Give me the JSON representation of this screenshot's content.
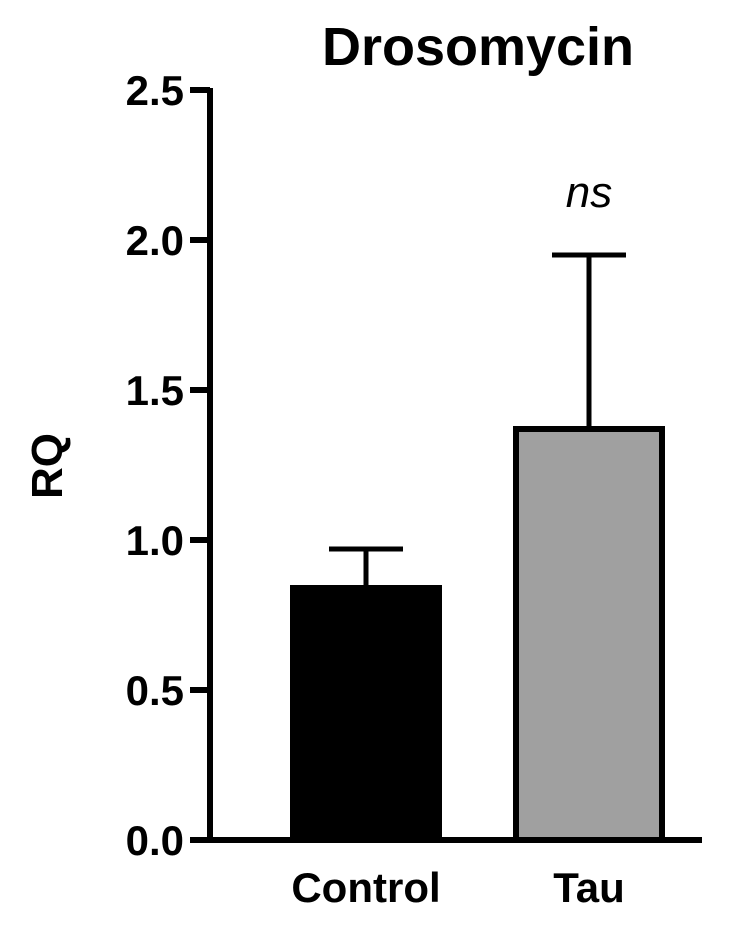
{
  "chart_data": {
    "type": "bar",
    "title": "Drosomycin",
    "ylabel": "RQ",
    "xlabel": "",
    "ylim": [
      0,
      2.5
    ],
    "yticks": [
      "0.0",
      "0.5",
      "1.0",
      "1.5",
      "2.0",
      "2.5"
    ],
    "ytick_values": [
      0,
      0.5,
      1.0,
      1.5,
      2.0,
      2.5
    ],
    "categories": [
      "Control",
      "Tau"
    ],
    "values": [
      0.84,
      1.37
    ],
    "error_upper": [
      0.97,
      1.95
    ],
    "colors": [
      "#000000",
      "#a0a0a0"
    ],
    "annotations": [
      {
        "category": "Tau",
        "text": "ns"
      }
    ],
    "grid": false,
    "legend": "none"
  }
}
